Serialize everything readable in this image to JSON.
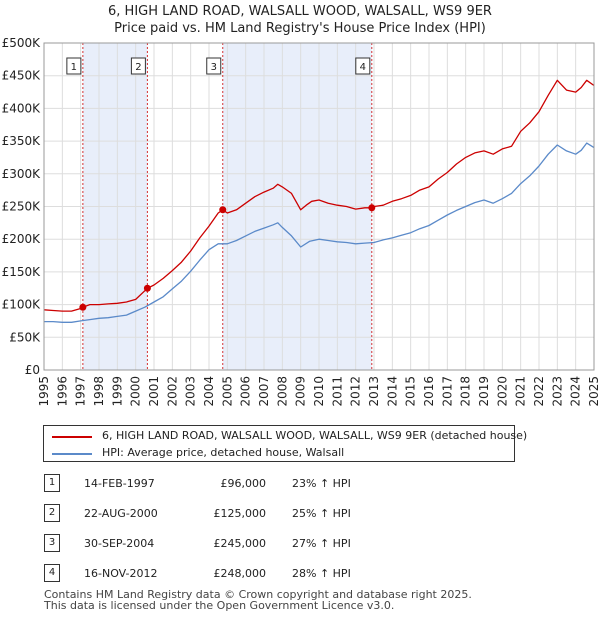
{
  "header": {
    "title": "6, HIGH LAND ROAD, WALSALL WOOD, WALSALL, WS9 9ER",
    "subtitle": "Price paid vs. HM Land Registry's House Price Index (HPI)"
  },
  "colors": {
    "property_line": "#cc0000",
    "hpi_line": "#5b8ac9",
    "shade": "#e8eefa",
    "vline": "#cc0000"
  },
  "legend": {
    "property": "6, HIGH LAND ROAD, WALSALL WOOD, WALSALL, WS9 9ER (detached house)",
    "hpi": "HPI: Average price, detached house, Walsall"
  },
  "chart_data": {
    "type": "line",
    "title": "Price paid vs. HM Land Registry's House Price Index (HPI)",
    "xlabel": "",
    "ylabel": "",
    "xlim": [
      1995,
      2025
    ],
    "ylim": [
      0,
      500000
    ],
    "grid": true,
    "y_ticks": [
      0,
      50000,
      100000,
      150000,
      200000,
      250000,
      300000,
      350000,
      400000,
      450000,
      500000
    ],
    "y_tick_labels": [
      "£0",
      "£50K",
      "£100K",
      "£150K",
      "£200K",
      "£250K",
      "£300K",
      "£350K",
      "£400K",
      "£450K",
      "£500K"
    ],
    "x_ticks": [
      1995,
      1996,
      1997,
      1998,
      1999,
      2000,
      2001,
      2002,
      2003,
      2004,
      2005,
      2006,
      2007,
      2008,
      2009,
      2010,
      2011,
      2012,
      2013,
      2014,
      2015,
      2016,
      2017,
      2018,
      2019,
      2020,
      2021,
      2022,
      2023,
      2024,
      2025
    ],
    "x_tick_labels": [
      "1995",
      "1996",
      "1997",
      "1998",
      "1999",
      "2000",
      "2001",
      "2002",
      "2003",
      "2004",
      "2005",
      "2006",
      "2007",
      "2008",
      "2009",
      "2010",
      "2011",
      "2012",
      "2013",
      "2014",
      "2015",
      "2016",
      "2017",
      "2018",
      "2019",
      "2020",
      "2021",
      "2022",
      "2023",
      "2024",
      "2025"
    ],
    "shaded_ranges": [
      [
        1997.12,
        2000.64
      ],
      [
        2004.75,
        2012.88
      ]
    ],
    "series": [
      {
        "name": "6, HIGH LAND ROAD, WALSALL WOOD, WALSALL, WS9 9ER (detached house)",
        "x": [
          1995.0,
          1995.5,
          1996.0,
          1996.5,
          1997.0,
          1997.12,
          1997.5,
          1998.0,
          1998.5,
          1999.0,
          1999.5,
          2000.0,
          2000.64,
          2001.0,
          2001.5,
          2002.0,
          2002.5,
          2003.0,
          2003.5,
          2004.0,
          2004.5,
          2004.75,
          2005.0,
          2005.5,
          2006.0,
          2006.5,
          2007.0,
          2007.5,
          2007.75,
          2008.0,
          2008.5,
          2009.0,
          2009.3,
          2009.6,
          2010.0,
          2010.5,
          2011.0,
          2011.5,
          2012.0,
          2012.5,
          2012.88,
          2013.0,
          2013.5,
          2014.0,
          2014.5,
          2015.0,
          2015.5,
          2016.0,
          2016.5,
          2017.0,
          2017.5,
          2018.0,
          2018.5,
          2019.0,
          2019.5,
          2020.0,
          2020.5,
          2021.0,
          2021.5,
          2022.0,
          2022.5,
          2023.0,
          2023.5,
          2024.0,
          2024.3,
          2024.6,
          2025.0
        ],
        "values": [
          92000,
          91000,
          90000,
          90000,
          94000,
          96000,
          100000,
          100000,
          101000,
          102000,
          104000,
          108000,
          125000,
          130000,
          140000,
          152000,
          165000,
          182000,
          202000,
          220000,
          240000,
          245000,
          240000,
          245000,
          255000,
          265000,
          272000,
          278000,
          284000,
          280000,
          270000,
          245000,
          252000,
          258000,
          260000,
          255000,
          252000,
          250000,
          246000,
          248000,
          248000,
          250000,
          252000,
          258000,
          262000,
          267000,
          275000,
          280000,
          292000,
          302000,
          315000,
          325000,
          332000,
          335000,
          330000,
          338000,
          342000,
          365000,
          378000,
          395000,
          420000,
          443000,
          428000,
          425000,
          432000,
          443000,
          435000
        ]
      },
      {
        "name": "HPI: Average price, detached house, Walsall",
        "x": [
          1995.0,
          1995.5,
          1996.0,
          1996.5,
          1997.0,
          1997.5,
          1998.0,
          1998.5,
          1999.0,
          1999.5,
          2000.0,
          2000.5,
          2001.0,
          2001.5,
          2002.0,
          2002.5,
          2003.0,
          2003.5,
          2004.0,
          2004.5,
          2005.0,
          2005.5,
          2006.0,
          2006.5,
          2007.0,
          2007.5,
          2007.75,
          2008.0,
          2008.5,
          2009.0,
          2009.5,
          2010.0,
          2010.5,
          2011.0,
          2011.5,
          2012.0,
          2012.5,
          2013.0,
          2013.5,
          2014.0,
          2014.5,
          2015.0,
          2015.5,
          2016.0,
          2016.5,
          2017.0,
          2017.5,
          2018.0,
          2018.5,
          2019.0,
          2019.5,
          2020.0,
          2020.5,
          2021.0,
          2021.5,
          2022.0,
          2022.5,
          2023.0,
          2023.5,
          2024.0,
          2024.3,
          2024.6,
          2025.0
        ],
        "values": [
          74000,
          74000,
          73000,
          73000,
          75000,
          77000,
          79000,
          80000,
          82000,
          84000,
          90000,
          96000,
          104000,
          112000,
          124000,
          136000,
          151000,
          168000,
          184000,
          193000,
          193000,
          198000,
          205000,
          212000,
          217000,
          222000,
          225000,
          218000,
          205000,
          188000,
          197000,
          200000,
          198000,
          196000,
          195000,
          193000,
          194000,
          195000,
          199000,
          202000,
          206000,
          210000,
          216000,
          221000,
          229000,
          237000,
          244000,
          250000,
          256000,
          260000,
          255000,
          262000,
          270000,
          285000,
          297000,
          312000,
          330000,
          344000,
          335000,
          330000,
          336000,
          347000,
          340000
        ]
      }
    ],
    "sales": [
      {
        "id": "1",
        "x": 1997.12,
        "value": 96000
      },
      {
        "id": "2",
        "x": 2000.64,
        "value": 125000
      },
      {
        "id": "3",
        "x": 2004.75,
        "value": 245000
      },
      {
        "id": "4",
        "x": 2012.88,
        "value": 248000
      }
    ]
  },
  "sales_table": [
    {
      "id": "1",
      "date": "14-FEB-1997",
      "price": "£96,000",
      "hpi": "23% ↑ HPI"
    },
    {
      "id": "2",
      "date": "22-AUG-2000",
      "price": "£125,000",
      "hpi": "25% ↑ HPI"
    },
    {
      "id": "3",
      "date": "30-SEP-2004",
      "price": "£245,000",
      "hpi": "27% ↑ HPI"
    },
    {
      "id": "4",
      "date": "16-NOV-2012",
      "price": "£248,000",
      "hpi": "28% ↑ HPI"
    }
  ],
  "footer": {
    "line1": "Contains HM Land Registry data © Crown copyright and database right 2025.",
    "line2": "This data is licensed under the Open Government Licence v3.0."
  }
}
